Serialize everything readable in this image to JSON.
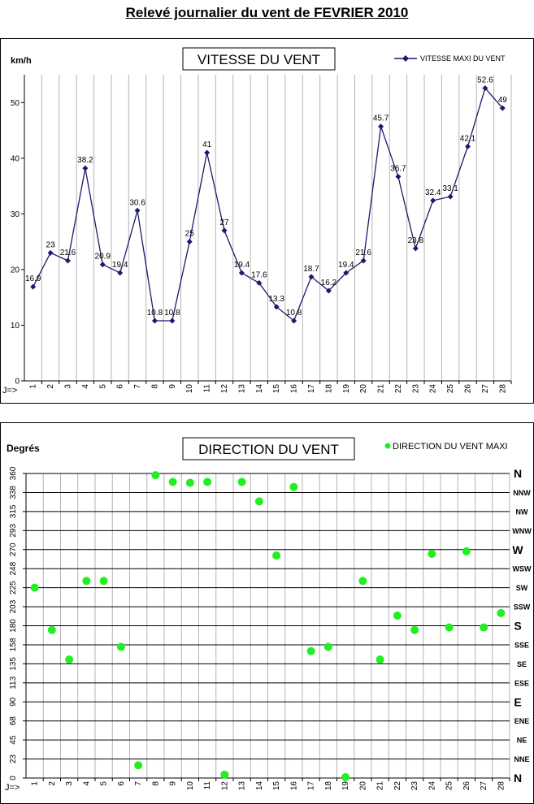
{
  "page_title": "Relevé journalier du vent de FEVRIER 2010",
  "chart_data": [
    {
      "type": "line",
      "title": "VITESSE DU VENT",
      "ylabel": "km/h",
      "x_marker": "J=>",
      "ylim": [
        0,
        55
      ],
      "yticks": [
        0,
        10,
        20,
        30,
        40,
        50
      ],
      "grid": "vertical",
      "legend_position": "top-right",
      "colors": {
        "series": "#1a1a6e"
      },
      "categories": [
        "1",
        "2",
        "3",
        "4",
        "5",
        "6",
        "7",
        "8",
        "9",
        "10",
        "11",
        "12",
        "13",
        "14",
        "15",
        "16",
        "17",
        "18",
        "19",
        "20",
        "21",
        "22",
        "23",
        "24",
        "25",
        "26",
        "27",
        "28"
      ],
      "series": [
        {
          "name": "VITESSE MAXI DU VENT",
          "values": [
            16.9,
            23,
            21.6,
            38.2,
            20.9,
            19.4,
            30.6,
            10.8,
            10.8,
            25,
            41,
            27,
            19.4,
            17.6,
            13.3,
            10.8,
            18.7,
            16.2,
            19.4,
            21.6,
            45.7,
            36.7,
            23.8,
            32.4,
            33.1,
            42.1,
            52.6,
            49
          ],
          "labels": [
            "16.9",
            "23",
            "21.6",
            "38.2",
            "20.9",
            "19.4",
            "30.6",
            "10.8",
            "10.8",
            "25",
            "41",
            "27",
            "19.4",
            "17.6",
            "13.3",
            "10.8",
            "18.7",
            "16.2",
            "19.4",
            "21.6",
            "45.7",
            "36.7",
            "23.8",
            "32.4",
            "33.1",
            "42.1",
            "52.6",
            "49"
          ]
        }
      ]
    },
    {
      "type": "scatter",
      "title": "DIRECTION DU VENT",
      "ylabel": "Degrés",
      "x_marker": "J=>",
      "ylim": [
        0,
        360
      ],
      "yticks": [
        0,
        23,
        45,
        68,
        90,
        113,
        135,
        158,
        180,
        203,
        225,
        248,
        270,
        293,
        315,
        338,
        360
      ],
      "compass": [
        "N",
        "NNE",
        "NE",
        "ENE",
        "E",
        "ESE",
        "SE",
        "SSE",
        "S",
        "SSW",
        "SW",
        "WSW",
        "W",
        "WNW",
        "NW",
        "NNW",
        "N"
      ],
      "grid": "both",
      "legend_position": "top-right",
      "colors": {
        "series": "#22ee22"
      },
      "categories": [
        "1",
        "2",
        "3",
        "4",
        "5",
        "6",
        "7",
        "8",
        "9",
        "10",
        "11",
        "12",
        "13",
        "14",
        "15",
        "16",
        "17",
        "18",
        "19",
        "20",
        "21",
        "22",
        "23",
        "24",
        "25",
        "26",
        "27",
        "28"
      ],
      "series": [
        {
          "name": "DIRECTION DU VENT MAXI",
          "values": [
            225,
            175,
            140,
            233,
            233,
            155,
            15,
            358,
            350,
            349,
            350,
            4,
            350,
            327,
            263,
            344,
            150,
            155,
            1,
            233,
            140,
            192,
            175,
            265,
            178,
            268,
            178,
            195
          ]
        }
      ]
    }
  ]
}
